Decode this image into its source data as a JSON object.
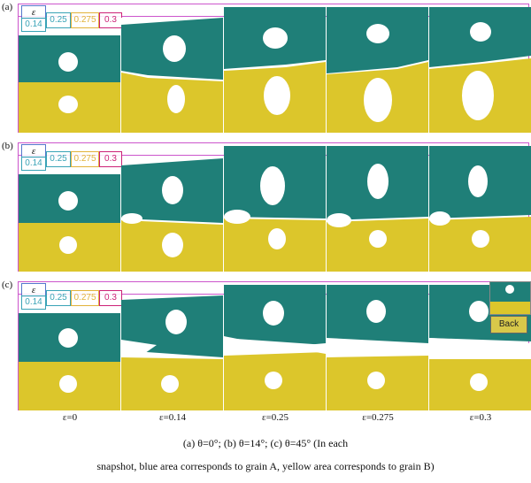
{
  "rows": [
    {
      "label": "(a)"
    },
    {
      "label": "(b)"
    },
    {
      "label": "(c)"
    }
  ],
  "legend": {
    "symbol": "ε",
    "values": [
      "0.14",
      "0.25",
      "0.275",
      "0.3"
    ]
  },
  "strain_labels": [
    "ε=0",
    "ε=0.14",
    "ε=0.25",
    "ε=0.275",
    "ε=0.3"
  ],
  "caption_line1": "(a)  θ=0°;  (b)  θ=14°;  (c)  θ=45°  (In  each",
  "caption_line2": "snapshot, blue area corresponds to grain A, yellow area corresponds to grain B)",
  "back_button": "Back",
  "colors": {
    "grain_a": "#1f7f78",
    "grain_b": "#dcc62b",
    "frame": "#cc55cc"
  }
}
